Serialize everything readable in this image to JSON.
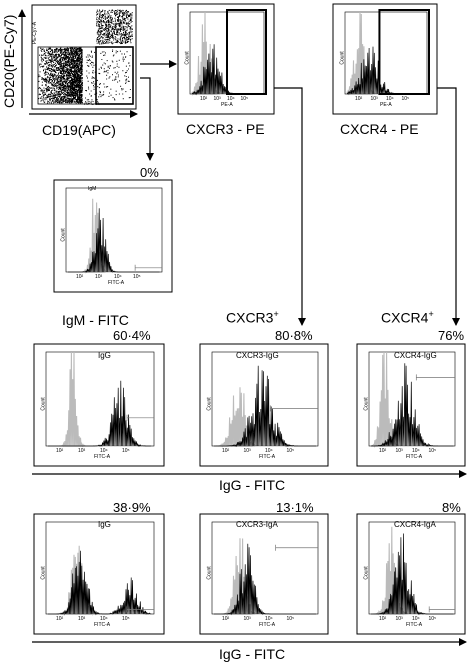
{
  "left_axis_label": "CD20(PE-Cy7)",
  "bottom_axis_label": "CD19(APC)",
  "dot_plot": {
    "y_axis": "PE-Cy7-A",
    "x_axis": "APC-A"
  },
  "hist_axis": {
    "count": "Count",
    "pe": "PE-A",
    "fitc": "FITC-A",
    "ticks": [
      "10²",
      "10³",
      "10⁴",
      "10⁵"
    ]
  },
  "top_row": [
    {
      "label": "CXCR3 - PE"
    },
    {
      "label": "CXCR4 - PE"
    }
  ],
  "igm": {
    "percent": "0%",
    "title": "IgM",
    "label": "IgM - FITC"
  },
  "gate_labels": {
    "cxcr3": "CXCR3",
    "cxcr4": "CXCR4",
    "plus": "+"
  },
  "row2": [
    {
      "percent": "60·4%",
      "title": "IgG"
    },
    {
      "percent": "80·8%",
      "title": "CXCR3-IgG"
    },
    {
      "percent": "76%",
      "title": "CXCR4-IgG"
    }
  ],
  "row2_axis_label": "IgG - FITC",
  "row3": [
    {
      "percent": "38·9%",
      "title": "IgG"
    },
    {
      "percent": "13·1%",
      "title": "CXCR3-IgA"
    },
    {
      "percent": "8%",
      "title": "CXCR4-IgA"
    }
  ],
  "row3_axis_label": "IgG - FITC"
}
